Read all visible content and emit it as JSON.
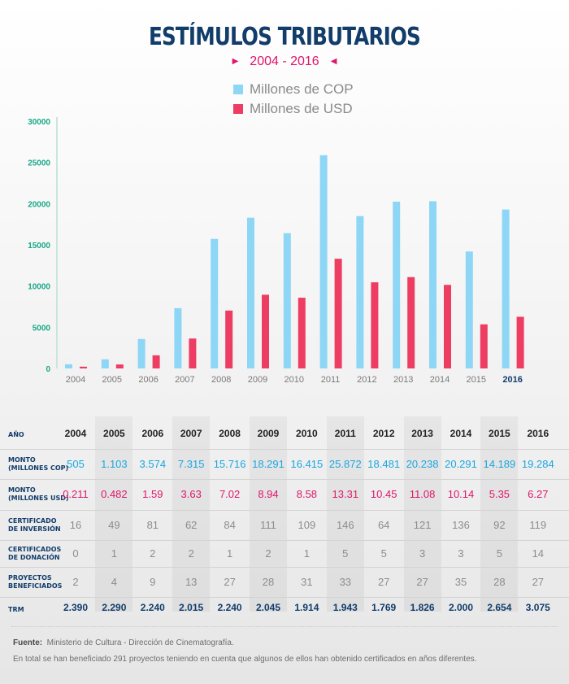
{
  "title": "ESTÍMULOS TRIBUTARIOS",
  "subtitle": "2004 - 2016",
  "chart_data": {
    "type": "bar",
    "title": "ESTÍMULOS TRIBUTARIOS",
    "subtitle": "2004 - 2016",
    "categories": [
      "2004",
      "2005",
      "2006",
      "2007",
      "2008",
      "2009",
      "2010",
      "2011",
      "2012",
      "2013",
      "2014",
      "2015",
      "2016"
    ],
    "series": [
      {
        "name": "Millones de COP",
        "color": "#8ed6f6",
        "values": [
          505,
          1103,
          3574,
          7315,
          15716,
          18291,
          16415,
          25872,
          18481,
          20238,
          20291,
          14189,
          19284
        ]
      },
      {
        "name": "Millones de USD",
        "color": "#ee3d62",
        "values": [
          211,
          482,
          1590,
          3630,
          7020,
          8940,
          8580,
          13310,
          10450,
          11080,
          10140,
          5350,
          6270
        ]
      }
    ],
    "yticks": [
      "0",
      "5000",
      "10000",
      "15000",
      "20000",
      "25000",
      "30000"
    ],
    "ylim": [
      0,
      30000
    ],
    "xlabel": "",
    "ylabel": "",
    "legend_position": "top-center",
    "grid": false
  },
  "table": {
    "years": [
      "2004",
      "2005",
      "2006",
      "2007",
      "2008",
      "2009",
      "2010",
      "2011",
      "2012",
      "2013",
      "2014",
      "2015",
      "2016"
    ],
    "header_label": "AÑO",
    "rows": [
      {
        "label1": "MONTO",
        "label2": "(MILLONES COP)",
        "color": "#1aa6e0",
        "values": [
          "505",
          "1.103",
          "3.574",
          "7.315",
          "15.716",
          "18.291",
          "16.415",
          "25.872",
          "18.481",
          "20.238",
          "20.291",
          "14.189",
          "19.284"
        ]
      },
      {
        "label1": "MONTO",
        "label2": "(MILLONES USD)",
        "color": "#e0156b",
        "values": [
          "0.211",
          "0.482",
          "1.59",
          "3.63",
          "7.02",
          "8.94",
          "8.58",
          "13.31",
          "10.45",
          "11.08",
          "10.14",
          "5.35",
          "6.27"
        ]
      },
      {
        "label1": "CERTIFICADO",
        "label2": "DE INVERSIÓN",
        "color": "#8c8c8c",
        "values": [
          "16",
          "49",
          "81",
          "62",
          "84",
          "111",
          "109",
          "146",
          "64",
          "121",
          "136",
          "92",
          "119"
        ]
      },
      {
        "label1": "CERTIFICADOS",
        "label2": "DE DONACIÓN",
        "color": "#8c8c8c",
        "values": [
          "0",
          "1",
          "2",
          "2",
          "1",
          "2",
          "1",
          "5",
          "5",
          "3",
          "3",
          "5",
          "14"
        ]
      },
      {
        "label1": "PROYECTOS",
        "label2": "BENEFICIADOS",
        "color": "#8c8c8c",
        "values": [
          "2",
          "4",
          "9",
          "13",
          "27",
          "28",
          "31",
          "33",
          "27",
          "27",
          "35",
          "28",
          "27"
        ]
      },
      {
        "label1": "TRM",
        "label2": "",
        "color": "#123d6b",
        "values": [
          "2.390",
          "2.290",
          "2.240",
          "2.015",
          "2.240",
          "2.045",
          "1.914",
          "1.943",
          "1.769",
          "1.826",
          "2.000",
          "2.654",
          "3.075"
        ]
      }
    ]
  },
  "footer": {
    "source_label": "Fuente:",
    "source_text": "Ministerio de Cultura - Dirección de Cinematografía.",
    "note": "En total se han beneficiado 291 proyectos teniendo en cuenta que algunos de ellos han obtenido certificados en años diferentes."
  }
}
